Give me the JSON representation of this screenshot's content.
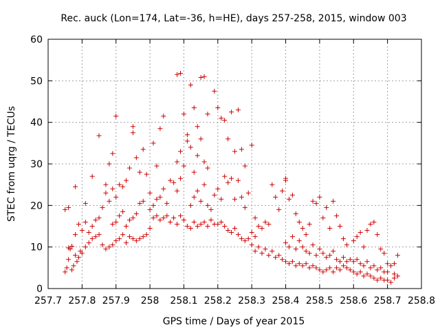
{
  "chart_data": {
    "type": "scatter",
    "title": "Rec. auck (Lon=174, Lat=-36, h=HE), days 257-258, 2015, window 003",
    "xlabel": "GPS time / Days of year 2015",
    "ylabel": "STEC from uqrg / TECUs",
    "xlim": [
      257.7,
      258.8
    ],
    "ylim": [
      0,
      60
    ],
    "x_ticks": [
      "257.7",
      "257.8",
      "257.9",
      "258",
      "258.1",
      "258.2",
      "258.3",
      "258.4",
      "258.5",
      "258.6",
      "258.7",
      "258.8"
    ],
    "y_ticks": [
      "0",
      "10",
      "20",
      "30",
      "40",
      "50",
      "60"
    ],
    "grid": true,
    "marker": "plus",
    "color": "#cc0000",
    "series": [
      {
        "points": [
          [
            257.75,
            4.0
          ],
          [
            257.755,
            5.0
          ],
          [
            257.76,
            7.0
          ],
          [
            257.765,
            9.5
          ],
          [
            257.77,
            4.5
          ],
          [
            257.775,
            5.5
          ],
          [
            257.78,
            8.0
          ],
          [
            257.785,
            6.5
          ],
          [
            257.79,
            7.5
          ],
          [
            257.795,
            9.0
          ],
          [
            257.8,
            8.5
          ],
          [
            257.81,
            10.0
          ],
          [
            257.82,
            11.0
          ],
          [
            257.83,
            12.0
          ],
          [
            257.84,
            12.5
          ],
          [
            257.85,
            13.0
          ],
          [
            257.86,
            10.5
          ],
          [
            257.87,
            9.5
          ],
          [
            257.88,
            10.0
          ],
          [
            257.89,
            10.5
          ],
          [
            257.9,
            11.5
          ],
          [
            257.91,
            12.0
          ],
          [
            257.92,
            13.0
          ],
          [
            257.93,
            11.0
          ],
          [
            257.94,
            12.5
          ],
          [
            257.95,
            12.0
          ],
          [
            257.96,
            11.5
          ],
          [
            257.97,
            12.0
          ],
          [
            257.98,
            12.5
          ],
          [
            257.99,
            13.0
          ],
          [
            257.76,
            9.8
          ],
          [
            257.77,
            10.2
          ],
          [
            257.78,
            13.0
          ],
          [
            257.79,
            15.5
          ],
          [
            257.8,
            14.0
          ],
          [
            257.81,
            16.0
          ],
          [
            257.82,
            13.5
          ],
          [
            257.83,
            15.0
          ],
          [
            257.84,
            16.5
          ],
          [
            257.85,
            17.0
          ],
          [
            257.75,
            19.0
          ],
          [
            257.76,
            19.5
          ],
          [
            257.78,
            24.5
          ],
          [
            257.81,
            20.5
          ],
          [
            257.83,
            27.0
          ],
          [
            257.85,
            36.8
          ],
          [
            257.87,
            25.0
          ],
          [
            257.88,
            30.0
          ],
          [
            257.89,
            32.5
          ],
          [
            257.9,
            41.5
          ],
          [
            257.86,
            19.5
          ],
          [
            257.87,
            23.0
          ],
          [
            257.88,
            21.0
          ],
          [
            257.89,
            24.0
          ],
          [
            257.9,
            22.0
          ],
          [
            257.91,
            25.0
          ],
          [
            257.92,
            24.5
          ],
          [
            257.93,
            26.0
          ],
          [
            257.94,
            29.0
          ],
          [
            257.95,
            39.0
          ],
          [
            257.89,
            15.5
          ],
          [
            257.9,
            16.0
          ],
          [
            257.91,
            17.5
          ],
          [
            257.92,
            18.5
          ],
          [
            257.93,
            15.0
          ],
          [
            257.94,
            16.5
          ],
          [
            257.95,
            17.0
          ],
          [
            257.96,
            18.0
          ],
          [
            257.97,
            20.5
          ],
          [
            257.98,
            21.0
          ],
          [
            257.95,
            37.5
          ],
          [
            257.96,
            31.5
          ],
          [
            257.97,
            28.0
          ],
          [
            257.98,
            33.5
          ],
          [
            257.99,
            27.5
          ],
          [
            258.0,
            23.0
          ],
          [
            258.01,
            35.0
          ],
          [
            258.02,
            29.5
          ],
          [
            258.03,
            38.5
          ],
          [
            258.04,
            41.5
          ],
          [
            258.0,
            14.5
          ],
          [
            258.01,
            17.0
          ],
          [
            258.02,
            17.5
          ],
          [
            258.03,
            16.5
          ],
          [
            258.04,
            17.0
          ],
          [
            258.05,
            17.5
          ],
          [
            258.06,
            16.0
          ],
          [
            258.07,
            17.0
          ],
          [
            258.08,
            15.5
          ],
          [
            258.09,
            17.5
          ],
          [
            258.0,
            19.0
          ],
          [
            258.01,
            20.0
          ],
          [
            258.02,
            21.5
          ],
          [
            258.03,
            22.0
          ],
          [
            258.04,
            24.0
          ],
          [
            258.05,
            20.5
          ],
          [
            258.06,
            26.0
          ],
          [
            258.07,
            25.5
          ],
          [
            258.08,
            23.5
          ],
          [
            258.09,
            26.5
          ],
          [
            258.08,
            51.5
          ],
          [
            258.09,
            51.8
          ],
          [
            258.1,
            42.0
          ],
          [
            258.11,
            37.0
          ],
          [
            258.12,
            49.0
          ],
          [
            258.13,
            43.5
          ],
          [
            258.14,
            39.0
          ],
          [
            258.15,
            50.8
          ],
          [
            258.16,
            51.0
          ],
          [
            258.17,
            42.0
          ],
          [
            258.08,
            30.5
          ],
          [
            258.09,
            33.0
          ],
          [
            258.1,
            29.5
          ],
          [
            258.11,
            35.5
          ],
          [
            258.12,
            34.0
          ],
          [
            258.13,
            28.0
          ],
          [
            258.14,
            32.0
          ],
          [
            258.15,
            36.0
          ],
          [
            258.16,
            30.5
          ],
          [
            258.17,
            29.0
          ],
          [
            258.1,
            16.5
          ],
          [
            258.11,
            15.0
          ],
          [
            258.12,
            14.5
          ],
          [
            258.13,
            16.0
          ],
          [
            258.14,
            15.0
          ],
          [
            258.15,
            15.5
          ],
          [
            258.16,
            16.0
          ],
          [
            258.17,
            15.0
          ],
          [
            258.18,
            16.5
          ],
          [
            258.19,
            15.5
          ],
          [
            258.12,
            20.0
          ],
          [
            258.13,
            22.0
          ],
          [
            258.14,
            23.5
          ],
          [
            258.15,
            21.0
          ],
          [
            258.16,
            25.0
          ],
          [
            258.17,
            20.0
          ],
          [
            258.18,
            19.0
          ],
          [
            258.19,
            22.5
          ],
          [
            258.2,
            24.0
          ],
          [
            258.21,
            21.5
          ],
          [
            258.19,
            47.5
          ],
          [
            258.2,
            43.5
          ],
          [
            258.21,
            41.0
          ],
          [
            258.22,
            40.5
          ],
          [
            258.23,
            36.0
          ],
          [
            258.24,
            42.5
          ],
          [
            258.25,
            33.0
          ],
          [
            258.26,
            43.0
          ],
          [
            258.27,
            33.5
          ],
          [
            258.28,
            29.5
          ],
          [
            258.2,
            15.5
          ],
          [
            258.21,
            16.0
          ],
          [
            258.22,
            15.0
          ],
          [
            258.23,
            14.0
          ],
          [
            258.24,
            13.5
          ],
          [
            258.25,
            14.5
          ],
          [
            258.26,
            13.0
          ],
          [
            258.27,
            12.0
          ],
          [
            258.28,
            11.5
          ],
          [
            258.29,
            12.0
          ],
          [
            258.22,
            27.0
          ],
          [
            258.23,
            25.5
          ],
          [
            258.24,
            26.5
          ],
          [
            258.25,
            21.5
          ],
          [
            258.26,
            26.0
          ],
          [
            258.27,
            22.0
          ],
          [
            258.28,
            19.5
          ],
          [
            258.29,
            23.0
          ],
          [
            258.3,
            34.5
          ],
          [
            258.31,
            17.0
          ],
          [
            258.3,
            10.5
          ],
          [
            258.31,
            9.0
          ],
          [
            258.32,
            10.0
          ],
          [
            258.33,
            8.5
          ],
          [
            258.34,
            9.5
          ],
          [
            258.35,
            8.0
          ],
          [
            258.36,
            9.0
          ],
          [
            258.37,
            7.5
          ],
          [
            258.38,
            8.0
          ],
          [
            258.39,
            7.0
          ],
          [
            258.3,
            13.5
          ],
          [
            258.31,
            12.5
          ],
          [
            258.32,
            15.0
          ],
          [
            258.33,
            14.5
          ],
          [
            258.34,
            16.0
          ],
          [
            258.35,
            15.5
          ],
          [
            258.36,
            25.0
          ],
          [
            258.37,
            22.0
          ],
          [
            258.38,
            19.0
          ],
          [
            258.39,
            23.5
          ],
          [
            258.4,
            6.5
          ],
          [
            258.41,
            6.0
          ],
          [
            258.42,
            6.5
          ],
          [
            258.43,
            5.5
          ],
          [
            258.44,
            6.0
          ],
          [
            258.45,
            5.5
          ],
          [
            258.46,
            6.0
          ],
          [
            258.47,
            5.0
          ],
          [
            258.48,
            5.5
          ],
          [
            258.49,
            5.0
          ],
          [
            258.4,
            26.0
          ],
          [
            258.4,
            26.5
          ],
          [
            258.41,
            21.5
          ],
          [
            258.42,
            22.5
          ],
          [
            258.43,
            18.0
          ],
          [
            258.44,
            16.0
          ],
          [
            258.45,
            14.5
          ],
          [
            258.46,
            13.0
          ],
          [
            258.47,
            15.5
          ],
          [
            258.48,
            21.0
          ],
          [
            258.4,
            11.0
          ],
          [
            258.41,
            10.0
          ],
          [
            258.42,
            12.5
          ],
          [
            258.43,
            9.5
          ],
          [
            258.44,
            11.5
          ],
          [
            258.45,
            10.0
          ],
          [
            258.46,
            9.0
          ],
          [
            258.47,
            8.5
          ],
          [
            258.48,
            10.5
          ],
          [
            258.49,
            8.0
          ],
          [
            258.5,
            4.5
          ],
          [
            258.51,
            4.0
          ],
          [
            258.52,
            4.5
          ],
          [
            258.53,
            5.0
          ],
          [
            258.54,
            4.0
          ],
          [
            258.55,
            5.0
          ],
          [
            258.56,
            4.5
          ],
          [
            258.57,
            5.5
          ],
          [
            258.58,
            5.0
          ],
          [
            258.59,
            4.5
          ],
          [
            258.49,
            20.5
          ],
          [
            258.5,
            22.0
          ],
          [
            258.51,
            17.0
          ],
          [
            258.52,
            19.5
          ],
          [
            258.53,
            14.5
          ],
          [
            258.54,
            21.0
          ],
          [
            258.55,
            17.5
          ],
          [
            258.56,
            15.0
          ],
          [
            258.57,
            12.0
          ],
          [
            258.58,
            10.5
          ],
          [
            258.5,
            9.5
          ],
          [
            258.51,
            8.5
          ],
          [
            258.52,
            7.5
          ],
          [
            258.53,
            8.0
          ],
          [
            258.54,
            9.0
          ],
          [
            258.55,
            7.0
          ],
          [
            258.56,
            6.5
          ],
          [
            258.57,
            7.5
          ],
          [
            258.58,
            6.5
          ],
          [
            258.59,
            7.0
          ],
          [
            258.6,
            4.0
          ],
          [
            258.61,
            3.5
          ],
          [
            258.62,
            4.0
          ],
          [
            258.63,
            3.0
          ],
          [
            258.64,
            3.5
          ],
          [
            258.65,
            3.0
          ],
          [
            258.66,
            2.5
          ],
          [
            258.67,
            2.0
          ],
          [
            258.68,
            2.5
          ],
          [
            258.69,
            2.0
          ],
          [
            258.6,
            11.5
          ],
          [
            258.61,
            12.5
          ],
          [
            258.62,
            13.5
          ],
          [
            258.63,
            10.0
          ],
          [
            258.64,
            14.0
          ],
          [
            258.65,
            15.5
          ],
          [
            258.66,
            16.0
          ],
          [
            258.67,
            13.0
          ],
          [
            258.68,
            9.5
          ],
          [
            258.69,
            8.5
          ],
          [
            258.6,
            6.5
          ],
          [
            258.61,
            7.0
          ],
          [
            258.62,
            6.0
          ],
          [
            258.63,
            5.5
          ],
          [
            258.64,
            6.5
          ],
          [
            258.65,
            5.0
          ],
          [
            258.66,
            5.5
          ],
          [
            258.67,
            4.5
          ],
          [
            258.68,
            5.0
          ],
          [
            258.69,
            4.0
          ],
          [
            258.7,
            2.0
          ],
          [
            258.71,
            1.5
          ],
          [
            258.72,
            2.5
          ],
          [
            258.73,
            3.0
          ],
          [
            258.7,
            6.0
          ],
          [
            258.71,
            5.5
          ],
          [
            258.72,
            6.0
          ],
          [
            258.73,
            8.0
          ],
          [
            258.7,
            4.0
          ],
          [
            258.72,
            3.5
          ]
        ]
      }
    ]
  }
}
